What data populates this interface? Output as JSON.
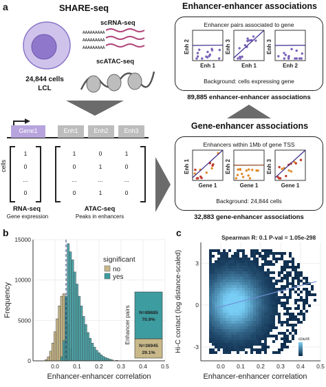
{
  "panel_a": {
    "label": "a",
    "share_seq_title": "SHARE-seq",
    "cell_count": "24,844 cells",
    "cell_type": "LCL",
    "scrna_label": "scRNA-seq",
    "scatac_label": "scATAC-seq",
    "polyA": [
      "AAAAAAAAA",
      "AAAAAAAAA",
      "AAAAAAAAA"
    ],
    "gene_label": "Gene1",
    "enh_labels": [
      "Enh1",
      "Enh2",
      "Enh3"
    ],
    "cells_label": "cells",
    "rna_matrix": [
      "1",
      "0",
      "...",
      "0"
    ],
    "atac_matrix": [
      [
        "1",
        "0",
        "1"
      ],
      [
        "0",
        "1",
        "0"
      ],
      [
        "...",
        "...",
        "..."
      ],
      [
        "0",
        "1",
        "0"
      ]
    ],
    "rna_seq_label": "RNA-seq",
    "rna_seq_sub": "Gene expression",
    "atac_seq_label": "ATAC-seq",
    "atac_seq_sub": "Peaks in enhancers",
    "ee_title": "Enhancer-enhancer associations",
    "ee_box_caption": "Enhancer pairs associated to gene",
    "ee_plots": [
      {
        "ylabel": "Enh 2",
        "xlabel": "Enh 1"
      },
      {
        "ylabel": "Enh 3",
        "xlabel": "Enh 1"
      },
      {
        "ylabel": "Enh 3",
        "xlabel": "Enh 2"
      }
    ],
    "ee_background": "Background: cells expressing gene",
    "ee_count": "89,885 enhancer-enhancer associations",
    "ge_title": "Gene-enhancer associations",
    "ge_box_caption": "Enhancers within 1Mb of gene TSS",
    "ge_plots": [
      {
        "ylabel": "Enh 1",
        "xlabel": "Gene 1"
      },
      {
        "ylabel": "Enh 2",
        "xlabel": "Gene 1"
      },
      {
        "ylabel": "Enh 3",
        "xlabel": "Gene 1"
      }
    ],
    "ge_background": "Background: 24,844 cells",
    "ge_count": "32,883 gene-enhancer associations"
  },
  "colors": {
    "ee_points": "#7a62b8",
    "ge_points_1": "#c0392b",
    "ge_points_2": "#e08a2a",
    "gene_box": "#b7a4dd",
    "enh_box": "#bdbdbd",
    "arrow": "#6b6b6b",
    "hist_no": "#c9b98a",
    "hist_yes": "#3d9ca0",
    "hexbin_dark": "#0a2a4a",
    "hexbin_light": "#7fd0f5"
  },
  "chart_data": [
    {
      "panel": "b",
      "type": "bar",
      "xlabel": "Enhancer-enhancer correlation",
      "ylabel": "Frequency",
      "xlim": [
        -0.1,
        0.5
      ],
      "ylim": [
        0,
        15000
      ],
      "xticks": [
        "0.0",
        "0.1",
        "0.2",
        "0.3",
        "0.4",
        "0.5"
      ],
      "yticks": [
        "0",
        "5000",
        "10000",
        "15000"
      ],
      "legend": {
        "title": "significant",
        "position": "top-right",
        "entries": [
          "no",
          "yes"
        ]
      },
      "bin_width": 0.01,
      "series": [
        {
          "name": "no",
          "x": [
            -0.04,
            -0.03,
            -0.02,
            -0.01,
            0.0,
            0.01,
            0.02,
            0.03,
            0.04,
            0.05,
            0.06,
            0.07
          ],
          "values": [
            150,
            500,
            1200,
            2200,
            3600,
            5200,
            6800,
            8000,
            8300,
            7500,
            4500,
            1500
          ]
        },
        {
          "name": "yes",
          "x": [
            0.03,
            0.04,
            0.05,
            0.06,
            0.07,
            0.08,
            0.09,
            0.1,
            0.11,
            0.12,
            0.13,
            0.14,
            0.15,
            0.16,
            0.17,
            0.18,
            0.19,
            0.2,
            0.21,
            0.22,
            0.23,
            0.24,
            0.25,
            0.26,
            0.28
          ],
          "values": [
            500,
            2500,
            8000,
            14500,
            13500,
            12500,
            11000,
            9500,
            8000,
            6800,
            5500,
            4500,
            3500,
            2800,
            2200,
            1700,
            1300,
            1000,
            750,
            550,
            400,
            300,
            200,
            120,
            60
          ]
        }
      ],
      "vline_x": 0.05,
      "stacked_bar": {
        "axis_label": "Enhancer pairs",
        "segments": [
          {
            "name": "yes",
            "label": "N=89885",
            "percent": "70.9%",
            "fraction": 0.709
          },
          {
            "name": "no",
            "label": "N=36945",
            "percent": "29.1%",
            "fraction": 0.291
          }
        ]
      }
    },
    {
      "panel": "c",
      "type": "heatmap",
      "title": "Spearman R: 0.1 P-val = 1.05e-298",
      "xlabel": "Enhancer-enhancer correlation",
      "ylabel": "Hi-C contact (log distance-scaled)",
      "xlim": [
        -0.1,
        0.5
      ],
      "ylim": [
        -4,
        4.5
      ],
      "xticks": [
        "0.0",
        "0.1",
        "0.2",
        "0.3",
        "0.4",
        "0.5"
      ],
      "yticks": [
        "-3",
        "0",
        "3"
      ],
      "legend": {
        "title": "count",
        "position": "bottom-right"
      },
      "trend_line": {
        "x": [
          -0.02,
          0.48
        ],
        "y": [
          -0.2,
          1.7
        ]
      }
    }
  ],
  "panel_labels": {
    "b": "b",
    "c": "c"
  }
}
